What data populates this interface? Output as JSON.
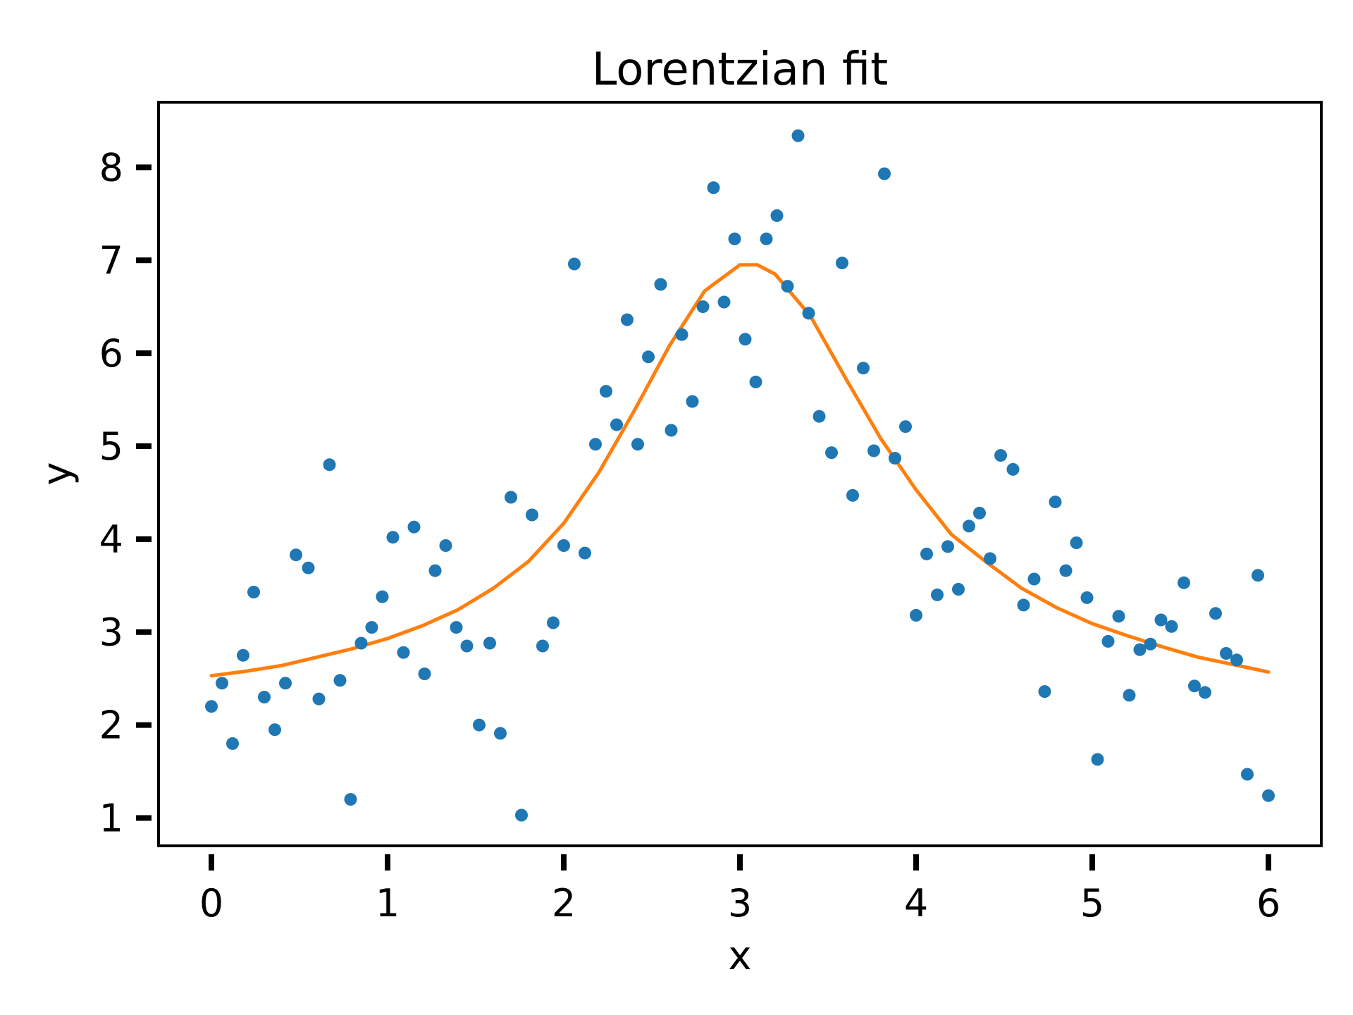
{
  "chart_data": {
    "type": "scatter",
    "title": "Lorentzian fit",
    "xlabel": "x",
    "ylabel": "y",
    "xlim": [
      -0.3,
      6.3
    ],
    "ylim": [
      0.7,
      8.7
    ],
    "xticks": [
      0,
      1,
      2,
      3,
      4,
      5,
      6
    ],
    "yticks": [
      1,
      2,
      3,
      4,
      5,
      6,
      7,
      8
    ],
    "grid": false,
    "legend": "none",
    "series": [
      {
        "kind": "scatter",
        "color": "#1f77b4",
        "points": [
          [
            0.0,
            2.2
          ],
          [
            0.06,
            2.45
          ],
          [
            0.12,
            1.8
          ],
          [
            0.18,
            2.75
          ],
          [
            0.24,
            3.43
          ],
          [
            0.3,
            2.3
          ],
          [
            0.36,
            1.95
          ],
          [
            0.42,
            2.45
          ],
          [
            0.48,
            3.83
          ],
          [
            0.55,
            3.69
          ],
          [
            0.61,
            2.28
          ],
          [
            0.67,
            4.8
          ],
          [
            0.73,
            2.48
          ],
          [
            0.79,
            1.2
          ],
          [
            0.85,
            2.88
          ],
          [
            0.91,
            3.05
          ],
          [
            0.97,
            3.38
          ],
          [
            1.03,
            4.02
          ],
          [
            1.09,
            2.78
          ],
          [
            1.15,
            4.13
          ],
          [
            1.21,
            2.55
          ],
          [
            1.27,
            3.66
          ],
          [
            1.33,
            3.93
          ],
          [
            1.39,
            3.05
          ],
          [
            1.45,
            2.85
          ],
          [
            1.52,
            2.0
          ],
          [
            1.58,
            2.88
          ],
          [
            1.64,
            1.91
          ],
          [
            1.7,
            4.45
          ],
          [
            1.76,
            1.03
          ],
          [
            1.82,
            4.26
          ],
          [
            1.88,
            2.85
          ],
          [
            1.94,
            3.1
          ],
          [
            2.0,
            3.93
          ],
          [
            2.06,
            6.96
          ],
          [
            2.12,
            3.85
          ],
          [
            2.18,
            5.02
          ],
          [
            2.24,
            5.59
          ],
          [
            2.3,
            5.23
          ],
          [
            2.36,
            6.36
          ],
          [
            2.42,
            5.02
          ],
          [
            2.48,
            5.96
          ],
          [
            2.55,
            6.74
          ],
          [
            2.61,
            5.17
          ],
          [
            2.67,
            6.2
          ],
          [
            2.73,
            5.48
          ],
          [
            2.79,
            6.5
          ],
          [
            2.85,
            7.78
          ],
          [
            2.91,
            6.55
          ],
          [
            2.97,
            7.23
          ],
          [
            3.03,
            6.15
          ],
          [
            3.09,
            5.69
          ],
          [
            3.15,
            7.23
          ],
          [
            3.21,
            7.48
          ],
          [
            3.27,
            6.72
          ],
          [
            3.33,
            8.34
          ],
          [
            3.39,
            6.43
          ],
          [
            3.45,
            5.32
          ],
          [
            3.52,
            4.93
          ],
          [
            3.58,
            6.97
          ],
          [
            3.64,
            4.47
          ],
          [
            3.7,
            5.84
          ],
          [
            3.76,
            4.95
          ],
          [
            3.82,
            7.93
          ],
          [
            3.88,
            4.87
          ],
          [
            3.94,
            5.21
          ],
          [
            4.0,
            3.18
          ],
          [
            4.06,
            3.84
          ],
          [
            4.12,
            3.4
          ],
          [
            4.18,
            3.92
          ],
          [
            4.24,
            3.46
          ],
          [
            4.3,
            4.14
          ],
          [
            4.36,
            4.28
          ],
          [
            4.42,
            3.79
          ],
          [
            4.48,
            4.9
          ],
          [
            4.55,
            4.75
          ],
          [
            4.61,
            3.29
          ],
          [
            4.67,
            3.57
          ],
          [
            4.73,
            2.36
          ],
          [
            4.79,
            4.4
          ],
          [
            4.85,
            3.66
          ],
          [
            4.91,
            3.96
          ],
          [
            4.97,
            3.37
          ],
          [
            5.03,
            1.63
          ],
          [
            5.09,
            2.9
          ],
          [
            5.15,
            3.17
          ],
          [
            5.21,
            2.32
          ],
          [
            5.27,
            2.81
          ],
          [
            5.33,
            2.87
          ],
          [
            5.39,
            3.13
          ],
          [
            5.45,
            3.06
          ],
          [
            5.52,
            3.53
          ],
          [
            5.58,
            2.42
          ],
          [
            5.64,
            2.35
          ],
          [
            5.7,
            3.2
          ],
          [
            5.76,
            2.77
          ],
          [
            5.82,
            2.7
          ],
          [
            5.88,
            1.47
          ],
          [
            5.94,
            3.61
          ],
          [
            6.0,
            1.24
          ]
        ]
      },
      {
        "kind": "line",
        "color": "#ff7f0e",
        "points": [
          [
            0.0,
            2.53
          ],
          [
            0.2,
            2.58
          ],
          [
            0.4,
            2.64
          ],
          [
            0.6,
            2.73
          ],
          [
            0.8,
            2.82
          ],
          [
            1.0,
            2.93
          ],
          [
            1.2,
            3.07
          ],
          [
            1.4,
            3.24
          ],
          [
            1.6,
            3.47
          ],
          [
            1.8,
            3.76
          ],
          [
            2.0,
            4.17
          ],
          [
            2.2,
            4.72
          ],
          [
            2.4,
            5.38
          ],
          [
            2.6,
            6.08
          ],
          [
            2.8,
            6.67
          ],
          [
            3.0,
            6.95
          ],
          [
            3.1,
            6.95
          ],
          [
            3.2,
            6.85
          ],
          [
            3.4,
            6.4
          ],
          [
            3.6,
            5.73
          ],
          [
            3.8,
            5.08
          ],
          [
            4.0,
            4.53
          ],
          [
            4.2,
            4.05
          ],
          [
            4.4,
            3.75
          ],
          [
            4.6,
            3.47
          ],
          [
            4.8,
            3.26
          ],
          [
            5.0,
            3.09
          ],
          [
            5.2,
            2.96
          ],
          [
            5.4,
            2.84
          ],
          [
            5.6,
            2.73
          ],
          [
            5.8,
            2.65
          ],
          [
            6.0,
            2.57
          ]
        ]
      }
    ]
  }
}
